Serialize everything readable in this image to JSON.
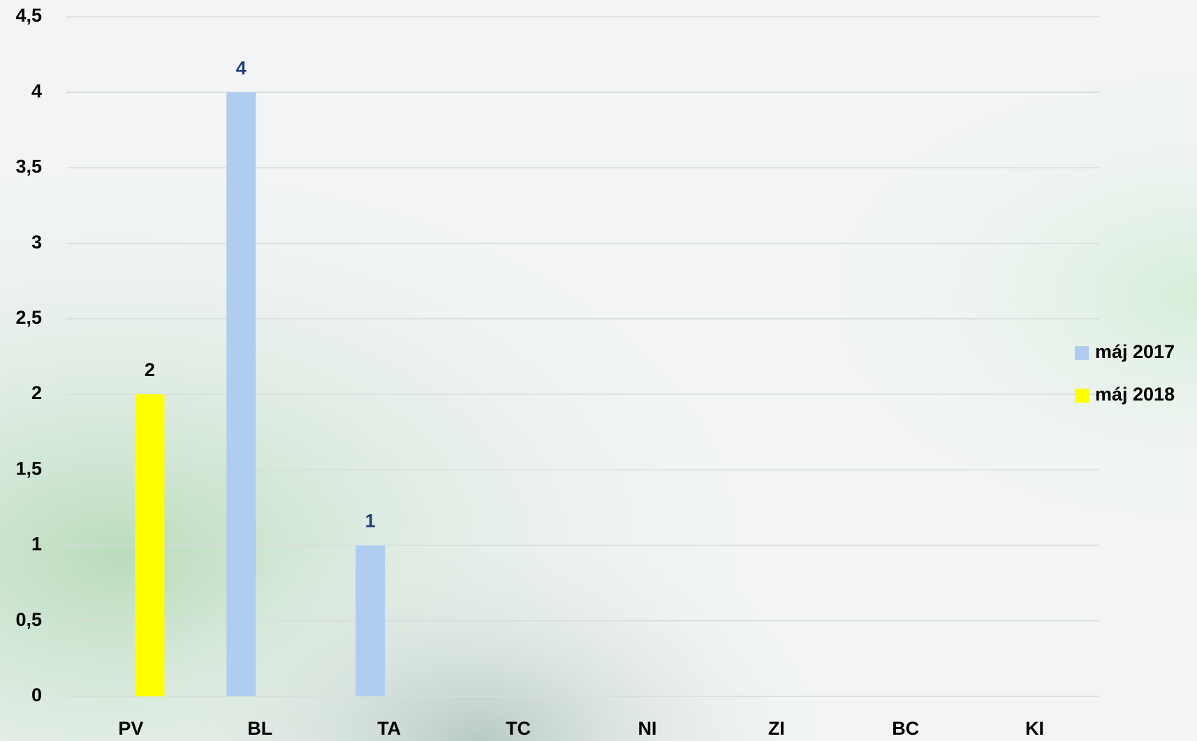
{
  "chart_data": {
    "type": "bar",
    "categories": [
      "PV",
      "BL",
      "TA",
      "TC",
      "NI",
      "ZI",
      "BC",
      "KI"
    ],
    "series": [
      {
        "name": "máj 2017",
        "color": "#b0cdf0",
        "label_color": "#1f3f7a",
        "values": [
          null,
          4,
          1,
          null,
          null,
          null,
          null,
          null
        ]
      },
      {
        "name": "máj 2018",
        "color": "#ffff00",
        "label_color": "#000000",
        "values": [
          2,
          null,
          null,
          null,
          null,
          null,
          null,
          null
        ]
      }
    ],
    "ylim": [
      0,
      4.5
    ],
    "yticks": [
      0,
      {
        "value": 0.5,
        "label": "0,5"
      },
      1,
      {
        "value": 1.5,
        "label": "1,5"
      },
      2,
      {
        "value": 2.5,
        "label": "2,5"
      },
      3,
      {
        "value": 3.5,
        "label": "3,5"
      },
      4,
      {
        "value": 4.5,
        "label": "4,5"
      }
    ],
    "grid": true,
    "legend": "right"
  }
}
